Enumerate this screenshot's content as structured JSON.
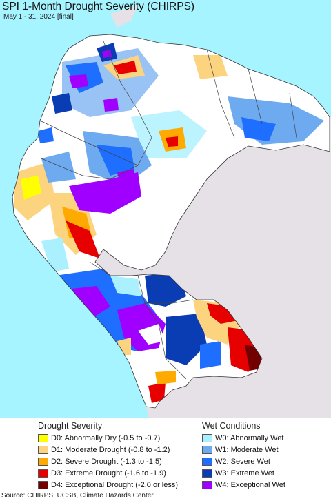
{
  "title": "SPI 1-Month Drought Severity (CHIRPS)",
  "subtitle": "May 1 - 31, 2024 [final]",
  "legend": {
    "drought_heading": "Drought Severity",
    "wet_heading": "Wet Conditions",
    "drought_items": [
      {
        "label": "D0: Abnormally Dry (-0.5 to -0.7)",
        "color": "#ffff00"
      },
      {
        "label": "D1: Moderate Drought (-0.8 to -1.2)",
        "color": "#fcd37f"
      },
      {
        "label": "D2: Severe Drought (-1.3 to -1.5)",
        "color": "#ffaa00"
      },
      {
        "label": "D3: Extreme Drought (-1.6 to -1.9)",
        "color": "#e60000"
      },
      {
        "label": "D4: Exceptional Drought (-2.0 or less)",
        "color": "#730000"
      }
    ],
    "wet_items": [
      {
        "label": "W0: Abnormally Wet",
        "color": "#aaf0ff"
      },
      {
        "label": "W1: Moderate Wet",
        "color": "#6eaaf0"
      },
      {
        "label": "W2: Severe Wet",
        "color": "#1e6eff"
      },
      {
        "label": "W3: Extreme Wet",
        "color": "#0a3cb4"
      },
      {
        "label": "W4: Exceptional Wet",
        "color": "#a000ff"
      }
    ]
  },
  "source": "Source: CHIRPS, UCSB, Climate Hazards Center",
  "colors": {
    "ocean": "#a6f4ff",
    "outside_land": "#e6e1e6",
    "no_anomaly": "#ffffff"
  }
}
